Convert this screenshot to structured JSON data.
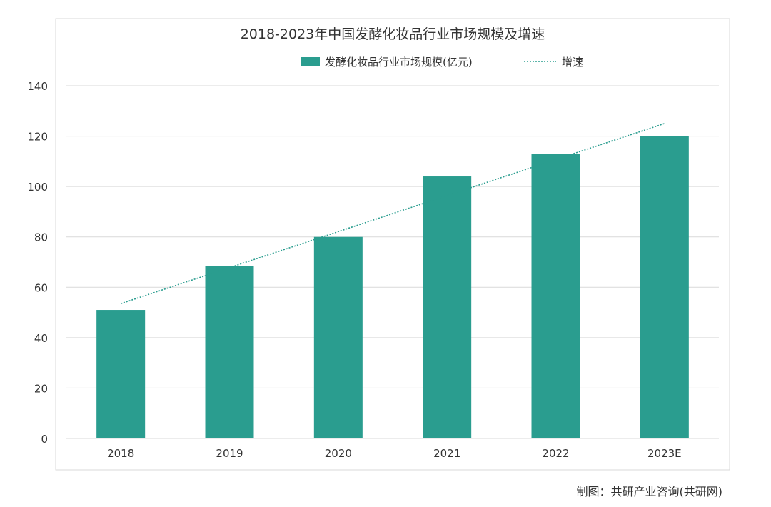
{
  "chart_data": {
    "type": "bar",
    "title": "2018-2023年中国发酵化妆品行业市场规模及增速",
    "categories": [
      "2018",
      "2019",
      "2020",
      "2021",
      "2022",
      "2023E"
    ],
    "series": [
      {
        "name": "发酵化妆品行业市场规模(亿元)",
        "type": "bar",
        "values": [
          51,
          68.5,
          80,
          104,
          113,
          120
        ],
        "color": "#2a9d8f"
      },
      {
        "name": "增速",
        "type": "trendline",
        "style": "dotted",
        "color": "#2a9d8f",
        "values": [
          53.5,
          67.8,
          82.1,
          96.4,
          110.7,
          125
        ]
      }
    ],
    "ylim": [
      0,
      140
    ],
    "yticks": [
      "0",
      "20",
      "40",
      "60",
      "80",
      "100",
      "120",
      "140"
    ],
    "grid": true,
    "legend_position": "top"
  },
  "source": "制图：共研产业咨询(共研网)"
}
